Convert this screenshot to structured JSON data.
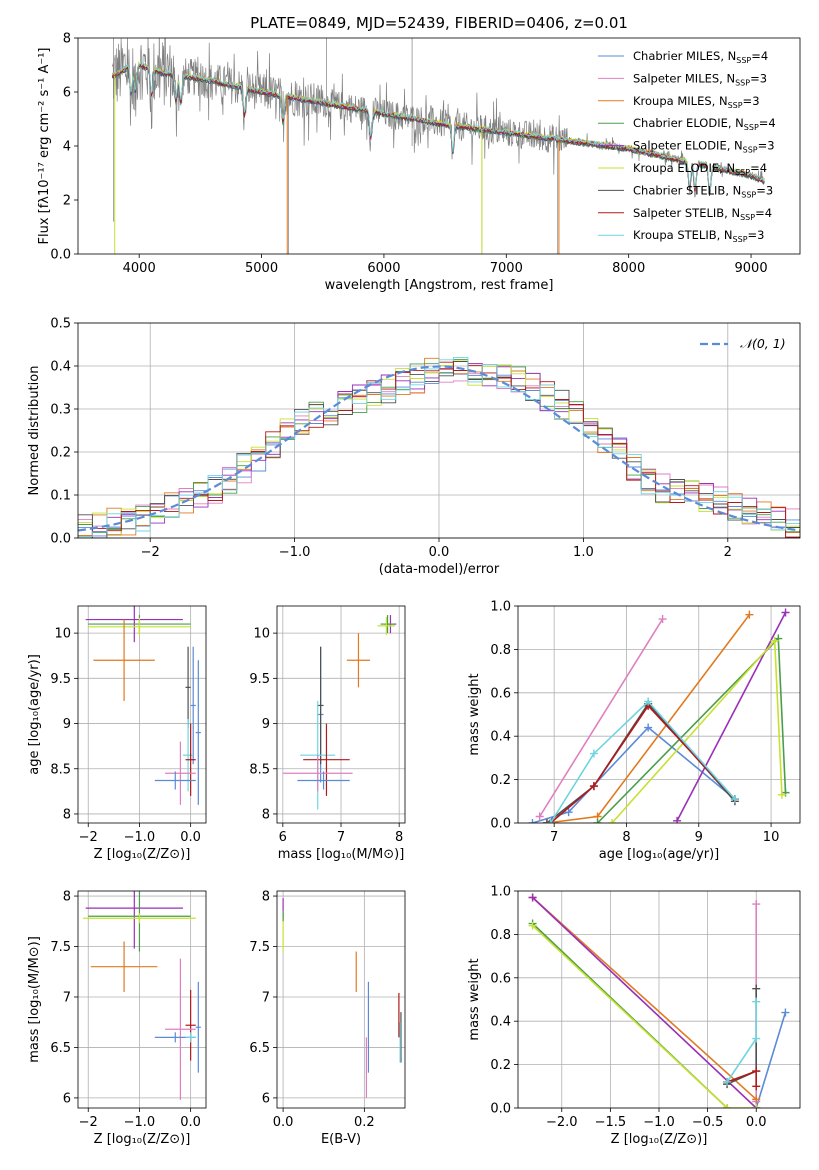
{
  "colors": {
    "Chabrier MILES": "#5b8bd8",
    "Salpeter MILES": "#e07fc0",
    "Kroupa MILES": "#e07a20",
    "Chabrier ELODIE": "#4a9e4a",
    "Salpeter ELODIE": "#9a2fb8",
    "Kroupa ELODIE": "#c8e030",
    "Chabrier STELIB": "#505050",
    "Salpeter STELIB": "#b01a1a",
    "Kroupa STELIB": "#6fd4e0",
    "data": "#808080",
    "gauss": "#5b8bd8"
  },
  "chart_data": [
    {
      "id": "spectrum",
      "type": "line",
      "title": "PLATE=0849, MJD=52439, FIBERID=0406, z=0.01",
      "xlabel": "wavelength [Angstrom, rest frame]",
      "ylabel": "Flux [fλ10⁻¹⁷ erg cm⁻² s⁻¹ A⁻¹]",
      "xlim": [
        3500,
        9400
      ],
      "ylim": [
        0,
        8
      ],
      "xticks": [
        4000,
        5000,
        6000,
        7000,
        8000,
        9000
      ],
      "yticks": [
        0,
        2,
        4,
        6,
        8
      ],
      "legend": [
        {
          "name": "Chabrier MILES",
          "nssp": "4"
        },
        {
          "name": "Salpeter MILES",
          "nssp": "3"
        },
        {
          "name": "Kroupa MILES",
          "nssp": "3"
        },
        {
          "name": "Chabrier ELODIE",
          "nssp": "4"
        },
        {
          "name": "Salpeter ELODIE",
          "nssp": "3"
        },
        {
          "name": "Kroupa ELODIE",
          "nssp": "4"
        },
        {
          "name": "Chabrier STELIB",
          "nssp": "3"
        },
        {
          "name": "Salpeter STELIB",
          "nssp": "4"
        },
        {
          "name": "Kroupa STELIB",
          "nssp": "3"
        }
      ],
      "legend_position": "upper right",
      "continuum": [
        [
          3800,
          6.6
        ],
        [
          3900,
          6.9
        ],
        [
          4000,
          7.0
        ],
        [
          4200,
          6.7
        ],
        [
          4500,
          6.5
        ],
        [
          5000,
          6.0
        ],
        [
          5500,
          5.6
        ],
        [
          6000,
          5.2
        ],
        [
          6500,
          4.8
        ],
        [
          7000,
          4.5
        ],
        [
          7500,
          4.2
        ],
        [
          8000,
          3.9
        ],
        [
          8500,
          3.4
        ],
        [
          9000,
          2.9
        ],
        [
          9100,
          2.7
        ]
      ],
      "absorption_lines": [
        [
          3934,
          5.2
        ],
        [
          3968,
          5.3
        ],
        [
          4102,
          5.8
        ],
        [
          4300,
          5.6
        ],
        [
          4340,
          5.7
        ],
        [
          4861,
          5.4
        ],
        [
          5175,
          5.2
        ],
        [
          5893,
          4.8
        ],
        [
          6563,
          4.4
        ],
        [
          8498,
          3.0
        ],
        [
          8542,
          2.9
        ],
        [
          8662,
          3.0
        ]
      ]
    },
    {
      "id": "residual-histogram",
      "type": "histogram",
      "xlabel": "(data-model)/error",
      "ylabel": "Normed distribution",
      "xlim": [
        -2.5,
        2.5
      ],
      "ylim": [
        0,
        0.5
      ],
      "xticks": [
        -2,
        -1,
        0,
        1,
        2
      ],
      "yticks": [
        0.0,
        0.1,
        0.2,
        0.3,
        0.4,
        0.5
      ],
      "grid": true,
      "bin_width": 0.1,
      "reference_label": "𝒩(0, 1)",
      "reference_curve": "normal(0,1)",
      "legend_position": "upper right",
      "base_shape": [
        [
          -2.5,
          0.02
        ],
        [
          -2.0,
          0.05
        ],
        [
          -1.5,
          0.12
        ],
        [
          -1.0,
          0.26
        ],
        [
          -0.5,
          0.33
        ],
        [
          0.0,
          0.39
        ],
        [
          0.5,
          0.38
        ],
        [
          1.0,
          0.28
        ],
        [
          1.5,
          0.12
        ],
        [
          2.0,
          0.08
        ],
        [
          2.5,
          0.03
        ]
      ]
    },
    {
      "id": "age-vs-Z",
      "type": "errorbar",
      "xlabel": "Z [log₁₀(Z/Z⊙)]",
      "ylabel": "age  [log₁₀(age/yr)]",
      "xlim": [
        -2.2,
        0.3
      ],
      "ylim": [
        7.9,
        10.3
      ],
      "xticks": [
        -2,
        -1,
        0
      ],
      "yticks": [
        8.0,
        8.5,
        9.0,
        9.5,
        10.0
      ],
      "grid": true,
      "points": [
        {
          "model": "Salpeter ELODIE",
          "x": -1.1,
          "y": 10.15,
          "xerr": 0.95,
          "yerr": 0.25
        },
        {
          "model": "Chabrier ELODIE",
          "x": -1.0,
          "y": 10.1,
          "xerr": 1.0,
          "yerr": 0.1
        },
        {
          "model": "Kroupa ELODIE",
          "x": -1.0,
          "y": 10.07,
          "xerr": 1.0,
          "yerr": 0.1
        },
        {
          "model": "Kroupa MILES",
          "x": -1.3,
          "y": 9.7,
          "xerr": 0.6,
          "yerr": 0.45
        },
        {
          "model": "Chabrier MILES",
          "x": 0.05,
          "y": 9.2,
          "xerr": 0.05,
          "yerr": 0.65
        },
        {
          "model": "Chabrier STELIB",
          "x": -0.05,
          "y": 9.4,
          "xerr": 0.05,
          "yerr": 0.45
        },
        {
          "model": "Kroupa STELIB",
          "x": -0.05,
          "y": 8.65,
          "xerr": 0.1,
          "yerr": 0.4
        },
        {
          "model": "Salpeter STELIB",
          "x": 0.0,
          "y": 8.6,
          "xerr": 0.1,
          "yerr": 0.4
        },
        {
          "model": "Salpeter MILES",
          "x": -0.2,
          "y": 8.45,
          "xerr": 0.3,
          "yerr": 0.35
        },
        {
          "model": "Chabrier MILES",
          "x": -0.3,
          "y": 8.37,
          "xerr": 0.4,
          "yerr": 0.1
        },
        {
          "model": "Chabrier MILES",
          "x": 0.15,
          "y": 8.9,
          "xerr": 0.05,
          "yerr": 0.8
        }
      ]
    },
    {
      "id": "age-vs-mass",
      "type": "errorbar",
      "xlabel": "mass [log₁₀(M/M⊙)]",
      "ylabel": "",
      "xlim": [
        5.9,
        8.1
      ],
      "ylim": [
        7.9,
        10.3
      ],
      "xticks": [
        6,
        7,
        8
      ],
      "yticks": [
        8.0,
        8.5,
        9.0,
        9.5,
        10.0
      ],
      "grid": true,
      "points": [
        {
          "model": "Salpeter ELODIE",
          "x": 7.85,
          "y": 10.1,
          "xerr": 0.1,
          "yerr": 0.1
        },
        {
          "model": "Chabrier ELODIE",
          "x": 7.8,
          "y": 10.1,
          "xerr": 0.12,
          "yerr": 0.1
        },
        {
          "model": "Kroupa ELODIE",
          "x": 7.78,
          "y": 10.08,
          "xerr": 0.15,
          "yerr": 0.1
        },
        {
          "model": "Kroupa MILES",
          "x": 7.3,
          "y": 9.7,
          "xerr": 0.2,
          "yerr": 0.3
        },
        {
          "model": "Chabrier MILES",
          "x": 6.65,
          "y": 9.1,
          "xerr": 0.05,
          "yerr": 0.75
        },
        {
          "model": "Chabrier STELIB",
          "x": 6.65,
          "y": 9.2,
          "xerr": 0.05,
          "yerr": 0.65
        },
        {
          "model": "Kroupa STELIB",
          "x": 6.6,
          "y": 8.65,
          "xerr": 0.3,
          "yerr": 0.6
        },
        {
          "model": "Salpeter STELIB",
          "x": 6.75,
          "y": 8.6,
          "xerr": 0.4,
          "yerr": 0.4
        },
        {
          "model": "Salpeter MILES",
          "x": 6.6,
          "y": 8.45,
          "xerr": 0.6,
          "yerr": 0.2
        },
        {
          "model": "Chabrier MILES",
          "x": 6.7,
          "y": 8.37,
          "xerr": 0.45,
          "yerr": 0.1
        }
      ]
    },
    {
      "id": "weight-vs-age",
      "type": "line",
      "xlabel": "age  [log₁₀(age/yr)]",
      "ylabel": "mass weight",
      "xlim": [
        6.5,
        10.4
      ],
      "ylim": [
        0,
        1
      ],
      "xticks": [
        7,
        8,
        9,
        10
      ],
      "yticks": [
        0.0,
        0.2,
        0.4,
        0.6,
        0.8,
        1.0
      ],
      "grid": true,
      "series": [
        {
          "model": "Chabrier MILES",
          "x": [
            6.7,
            7.2,
            8.3,
            9.5
          ],
          "y": [
            0.0,
            0.05,
            0.44,
            0.11
          ]
        },
        {
          "model": "Salpeter MILES",
          "x": [
            6.8,
            8.5
          ],
          "y": [
            0.03,
            0.94
          ]
        },
        {
          "model": "Kroupa MILES",
          "x": [
            6.9,
            7.6,
            9.7
          ],
          "y": [
            0.0,
            0.03,
            0.96
          ]
        },
        {
          "model": "Chabrier ELODIE",
          "x": [
            7.6,
            10.1,
            10.2
          ],
          "y": [
            0.0,
            0.85,
            0.14
          ]
        },
        {
          "model": "Salpeter ELODIE",
          "x": [
            8.7,
            10.2
          ],
          "y": [
            0.01,
            0.97
          ]
        },
        {
          "model": "Kroupa ELODIE",
          "x": [
            7.8,
            10.05,
            10.15
          ],
          "y": [
            0.0,
            0.84,
            0.13
          ]
        },
        {
          "model": "Chabrier STELIB",
          "x": [
            6.9,
            7.55,
            8.3,
            9.5
          ],
          "y": [
            0.0,
            0.17,
            0.55,
            0.1
          ]
        },
        {
          "model": "Salpeter STELIB",
          "x": [
            6.95,
            7.55,
            8.3,
            9.5
          ],
          "y": [
            0.0,
            0.17,
            0.54,
            0.11
          ]
        },
        {
          "model": "Kroupa STELIB",
          "x": [
            6.95,
            7.55,
            8.3,
            9.5
          ],
          "y": [
            0.0,
            0.32,
            0.56,
            0.11
          ]
        }
      ]
    },
    {
      "id": "mass-vs-Z",
      "type": "errorbar",
      "xlabel": "Z [log₁₀(Z/Z⊙)]",
      "ylabel": "mass [log₁₀(M/M⊙)]",
      "xlim": [
        -2.2,
        0.3
      ],
      "ylim": [
        5.9,
        8.05
      ],
      "xticks": [
        -2,
        -1,
        0
      ],
      "yticks": [
        6.0,
        6.5,
        7.0,
        7.5,
        8.0
      ],
      "grid": true,
      "points": [
        {
          "model": "Salpeter ELODIE",
          "x": -1.1,
          "y": 7.88,
          "xerr": 0.95,
          "yerr": 0.4
        },
        {
          "model": "Chabrier ELODIE",
          "x": -1.0,
          "y": 7.8,
          "xerr": 1.0,
          "yerr": 0.35
        },
        {
          "model": "Kroupa ELODIE",
          "x": -1.0,
          "y": 7.78,
          "xerr": 1.1,
          "yerr": 0.05
        },
        {
          "model": "Kroupa MILES",
          "x": -1.3,
          "y": 7.3,
          "xerr": 0.65,
          "yerr": 0.25
        },
        {
          "model": "Salpeter STELIB",
          "x": 0.0,
          "y": 6.72,
          "xerr": 0.1,
          "yerr": 0.35
        },
        {
          "model": "Salpeter MILES",
          "x": -0.2,
          "y": 6.68,
          "xerr": 0.3,
          "yerr": 0.7
        },
        {
          "model": "Chabrier MILES",
          "x": -0.3,
          "y": 6.6,
          "xerr": 0.4,
          "yerr": 0.05
        },
        {
          "model": "Chabrier MILES",
          "x": 0.15,
          "y": 6.7,
          "xerr": 0.05,
          "yerr": 0.45
        },
        {
          "model": "Kroupa STELIB",
          "x": 0.0,
          "y": 6.6,
          "xerr": 0.1,
          "yerr": 0.05
        }
      ]
    },
    {
      "id": "mass-vs-EBV",
      "type": "errorbar",
      "xlabel": "E(B-V)",
      "ylabel": "",
      "xlim": [
        -0.015,
        0.3
      ],
      "ylim": [
        5.9,
        8.05
      ],
      "xticks": [
        0.0,
        0.2
      ],
      "yticks": [
        6.0,
        6.5,
        7.0,
        7.5,
        8.0
      ],
      "grid": true,
      "points": [
        {
          "model": "Salpeter ELODIE",
          "x": 0.0,
          "y": 7.88,
          "xerr": 0,
          "yerr": 0.1
        },
        {
          "model": "Kroupa ELODIE",
          "x": 0.0,
          "y": 7.65,
          "xerr": 0,
          "yerr": 0.2
        },
        {
          "model": "Chabrier ELODIE",
          "x": 0.0,
          "y": 7.8,
          "xerr": 0,
          "yerr": 0.05
        },
        {
          "model": "Kroupa MILES",
          "x": 0.18,
          "y": 7.25,
          "xerr": 0,
          "yerr": 0.2
        },
        {
          "model": "Chabrier MILES",
          "x": 0.21,
          "y": 6.7,
          "xerr": 0,
          "yerr": 0.45
        },
        {
          "model": "Salpeter MILES",
          "x": 0.205,
          "y": 6.3,
          "xerr": 0,
          "yerr": 0.3
        },
        {
          "model": "Salpeter STELIB",
          "x": 0.285,
          "y": 6.82,
          "xerr": 0,
          "yerr": 0.22
        },
        {
          "model": "Chabrier STELIB",
          "x": 0.29,
          "y": 6.6,
          "xerr": 0,
          "yerr": 0.25
        },
        {
          "model": "Kroupa STELIB",
          "x": 0.288,
          "y": 6.55,
          "xerr": 0,
          "yerr": 0.2
        }
      ]
    },
    {
      "id": "weight-vs-Z",
      "type": "line",
      "xlabel": "Z [log₁₀(Z/Z⊙)]",
      "ylabel": "mass weight",
      "xlim": [
        -2.45,
        0.45
      ],
      "ylim": [
        0,
        1
      ],
      "xticks": [
        -2.0,
        -1.5,
        -1.0,
        -0.5,
        0.0
      ],
      "xticklabels": [
        "−2.0",
        "−1.5",
        "−1.0",
        "−0.5",
        "0.0"
      ],
      "yticks": [
        0.0,
        0.2,
        0.4,
        0.6,
        0.8,
        1.0
      ],
      "grid": true,
      "series": [
        {
          "model": "Chabrier MILES",
          "x": [
            0.0,
            0.3
          ],
          "y": [
            0.0,
            0.44
          ]
        },
        {
          "model": "Salpeter MILES",
          "x": [
            0.0,
            0.0
          ],
          "y": [
            0.03,
            0.94
          ]
        },
        {
          "model": "Kroupa MILES",
          "x": [
            -2.3,
            0.0
          ],
          "y": [
            0.97,
            0.04
          ]
        },
        {
          "model": "Chabrier ELODIE",
          "x": [
            -2.3,
            -0.3
          ],
          "y": [
            0.85,
            0.0
          ]
        },
        {
          "model": "Salpeter ELODIE",
          "x": [
            -2.3,
            0.0
          ],
          "y": [
            0.97,
            0.0
          ]
        },
        {
          "model": "Kroupa ELODIE",
          "x": [
            -2.3,
            -0.3,
            0.0
          ],
          "y": [
            0.84,
            0.0,
            0.0
          ]
        },
        {
          "model": "Chabrier STELIB",
          "x": [
            -0.3,
            0.0,
            0.0
          ],
          "y": [
            0.11,
            0.17,
            0.55
          ]
        },
        {
          "model": "Salpeter STELIB",
          "x": [
            -0.3,
            0.0,
            0.0
          ],
          "y": [
            0.12,
            0.17,
            0.1
          ]
        },
        {
          "model": "Kroupa STELIB",
          "x": [
            -0.3,
            0.0,
            0.0
          ],
          "y": [
            0.12,
            0.32,
            0.49
          ]
        }
      ]
    }
  ]
}
